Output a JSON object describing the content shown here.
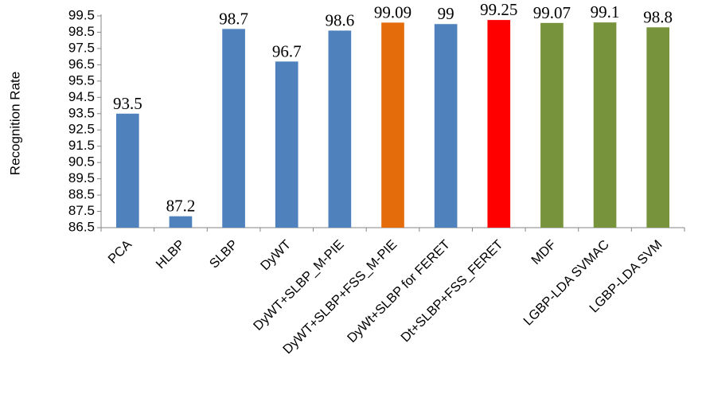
{
  "chart_data": {
    "type": "bar",
    "title": "",
    "xlabel": "",
    "ylabel": "Recognition Rate",
    "ylim": [
      86.5,
      99.5
    ],
    "yticks": [
      86.5,
      87.5,
      88.5,
      89.5,
      90.5,
      91.5,
      92.5,
      93.5,
      94.5,
      95.5,
      96.5,
      97.5,
      98.5,
      99.5
    ],
    "grid": false,
    "legend": "none",
    "categories": [
      "PCA",
      "HLBP",
      "SLBP",
      "DyWT",
      "DyWT+SLBP_M-PIE",
      "DyWT+SLBP+FSS_M-PIE",
      "DyWt+SLBP for FERET",
      "Dt+SLBP+FSS_FERET",
      "MDF",
      "LGBP-LDA SVMAC",
      "LGBP-LDA SVM"
    ],
    "values": [
      93.5,
      87.2,
      98.7,
      96.7,
      98.6,
      99.09,
      99,
      99.25,
      99.07,
      99.1,
      98.8
    ],
    "value_labels": [
      "93.5",
      "87.2",
      "98.7",
      "96.7",
      "98.6",
      "99.09",
      "99",
      "99.25",
      "99.07",
      "99.1",
      "98.8"
    ],
    "colors": [
      "#4F81BD",
      "#4F81BD",
      "#4F81BD",
      "#4F81BD",
      "#4F81BD",
      "#E46C0A",
      "#4F81BD",
      "#FF0000",
      "#77933C",
      "#77933C",
      "#77933C"
    ]
  }
}
